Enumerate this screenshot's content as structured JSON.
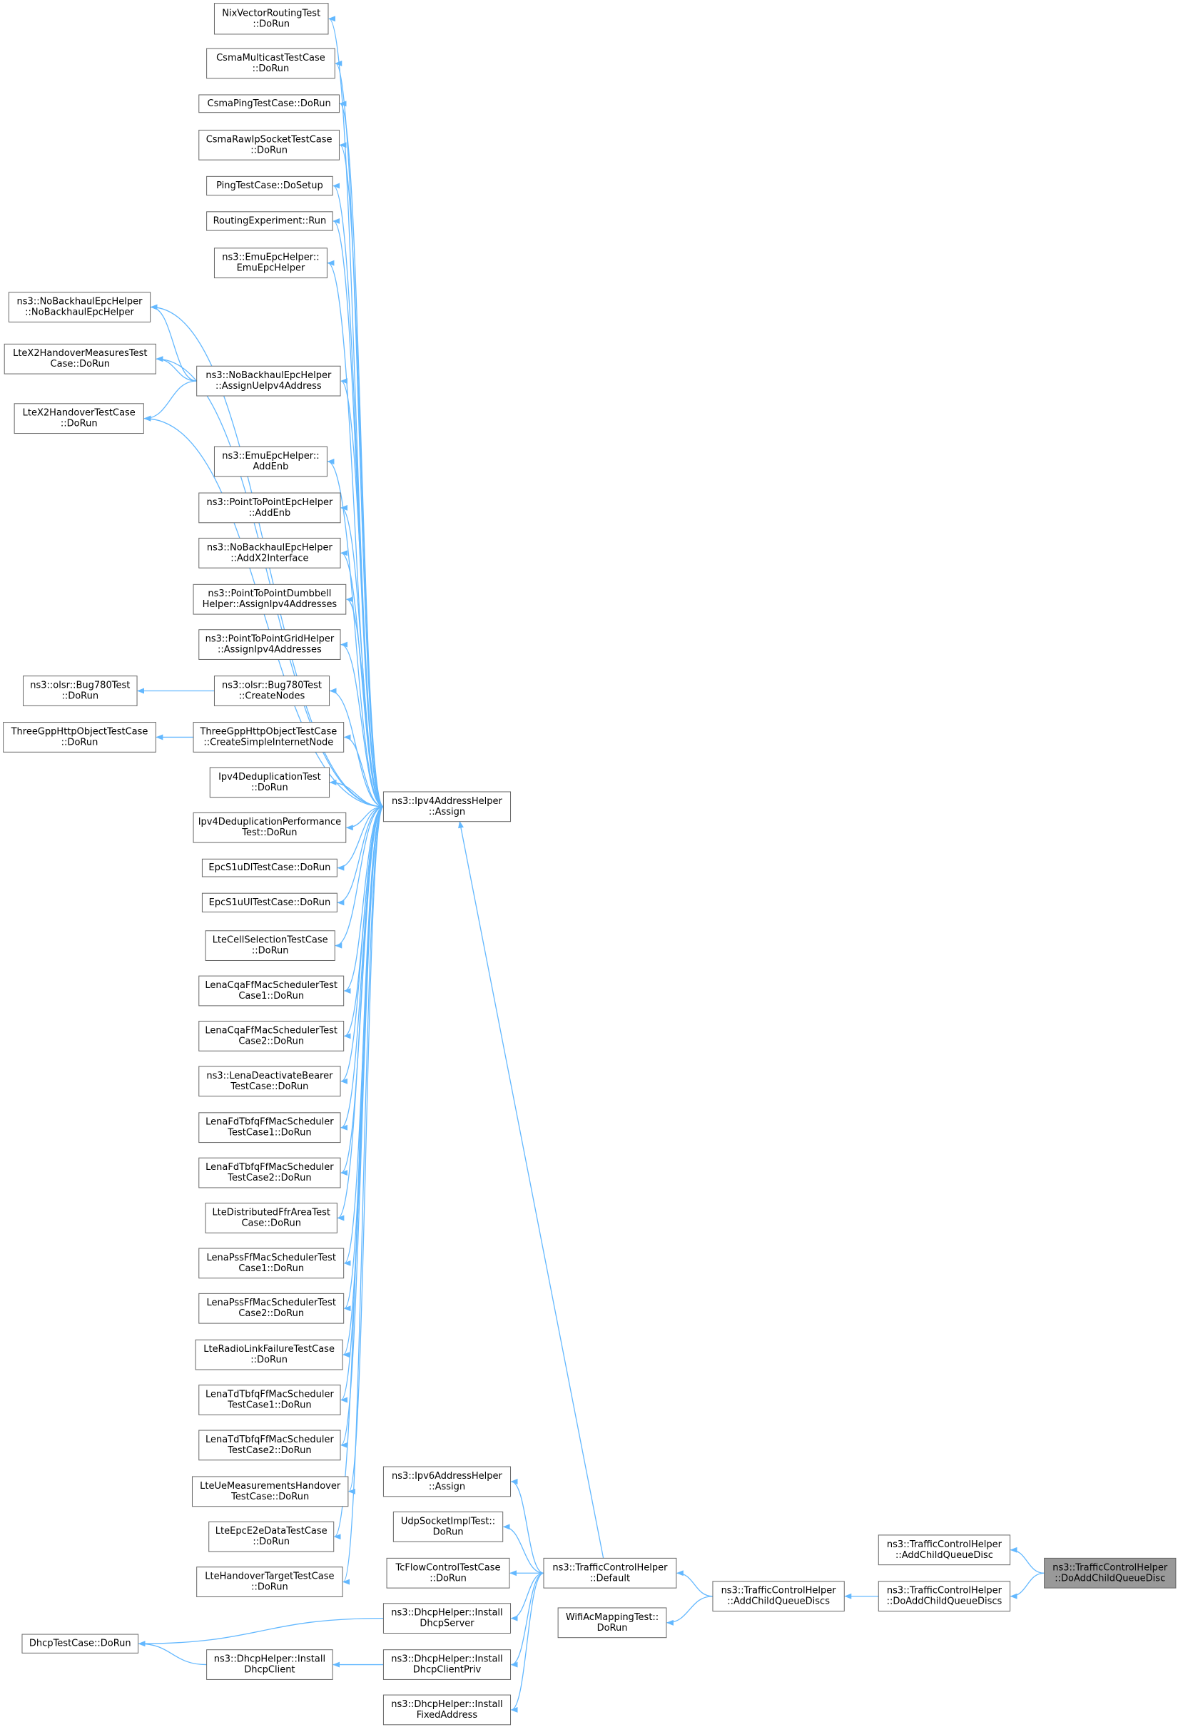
{
  "nodes": [
    {
      "lines": [
        "NixVectorRoutingTest",
        "::DoRun"
      ]
    },
    {
      "lines": [
        "CsmaMulticastTestCase",
        "::DoRun"
      ]
    },
    {
      "lines": [
        "CsmaPingTestCase::DoRun"
      ]
    },
    {
      "lines": [
        "CsmaRawIpSocketTestCase",
        "::DoRun"
      ]
    },
    {
      "lines": [
        "PingTestCase::DoSetup"
      ]
    },
    {
      "lines": [
        "RoutingExperiment::Run"
      ]
    },
    {
      "lines": [
        "ns3::EmuEpcHelper::",
        "EmuEpcHelper"
      ]
    },
    {
      "lines": [
        "ns3::NoBackhaulEpcHelper",
        "::NoBackhaulEpcHelper"
      ]
    },
    {
      "lines": [
        "LteX2HandoverMeasuresTest",
        "Case::DoRun"
      ]
    },
    {
      "lines": [
        "ns3::NoBackhaulEpcHelper",
        "::AssignUeIpv4Address"
      ]
    },
    {
      "lines": [
        "LteX2HandoverTestCase",
        "::DoRun"
      ]
    },
    {
      "lines": [
        "ns3::EmuEpcHelper::",
        "AddEnb"
      ]
    },
    {
      "lines": [
        "ns3::PointToPointEpcHelper",
        "::AddEnb"
      ]
    },
    {
      "lines": [
        "ns3::NoBackhaulEpcHelper",
        "::AddX2Interface"
      ]
    },
    {
      "lines": [
        "ns3::PointToPointDumbbell",
        "Helper::AssignIpv4Addresses"
      ]
    },
    {
      "lines": [
        "ns3::PointToPointGridHelper",
        "::AssignIpv4Addresses"
      ]
    },
    {
      "lines": [
        "ns3::olsr::Bug780Test",
        "::DoRun"
      ]
    },
    {
      "lines": [
        "ns3::olsr::Bug780Test",
        "::CreateNodes"
      ]
    },
    {
      "lines": [
        "ThreeGppHttpObjectTestCase",
        "::DoRun"
      ]
    },
    {
      "lines": [
        "ThreeGppHttpObjectTestCase",
        "::CreateSimpleInternetNode"
      ]
    },
    {
      "lines": [
        "Ipv4DeduplicationTest",
        "::DoRun"
      ]
    },
    {
      "lines": [
        "ns3::Ipv4AddressHelper",
        "::Assign"
      ]
    },
    {
      "lines": [
        "Ipv4DeduplicationPerformance",
        "Test::DoRun"
      ]
    },
    {
      "lines": [
        "EpcS1uDlTestCase::DoRun"
      ]
    },
    {
      "lines": [
        "EpcS1uUlTestCase::DoRun"
      ]
    },
    {
      "lines": [
        "LteCellSelectionTestCase",
        "::DoRun"
      ]
    },
    {
      "lines": [
        "LenaCqaFfMacSchedulerTest",
        "Case1::DoRun"
      ]
    },
    {
      "lines": [
        "LenaCqaFfMacSchedulerTest",
        "Case2::DoRun"
      ]
    },
    {
      "lines": [
        "ns3::LenaDeactivateBearer",
        "TestCase::DoRun"
      ]
    },
    {
      "lines": [
        "LenaFdTbfqFfMacScheduler",
        "TestCase1::DoRun"
      ]
    },
    {
      "lines": [
        "LenaFdTbfqFfMacScheduler",
        "TestCase2::DoRun"
      ]
    },
    {
      "lines": [
        "LteDistributedFfrAreaTest",
        "Case::DoRun"
      ]
    },
    {
      "lines": [
        "LenaPssFfMacSchedulerTest",
        "Case1::DoRun"
      ]
    },
    {
      "lines": [
        "LenaPssFfMacSchedulerTest",
        "Case2::DoRun"
      ]
    },
    {
      "lines": [
        "LteRadioLinkFailureTestCase",
        "::DoRun"
      ]
    },
    {
      "lines": [
        "LenaTdTbfqFfMacScheduler",
        "TestCase1::DoRun"
      ]
    },
    {
      "lines": [
        "LenaTdTbfqFfMacScheduler",
        "TestCase2::DoRun"
      ]
    },
    {
      "lines": [
        "LteUeMeasurementsHandover",
        "TestCase::DoRun"
      ]
    },
    {
      "lines": [
        "LteEpcE2eDataTestCase",
        "::DoRun"
      ]
    },
    {
      "lines": [
        "LteHandoverTargetTestCase",
        "::DoRun"
      ]
    },
    {
      "lines": [
        "ns3::Ipv6AddressHelper",
        "::Assign"
      ]
    },
    {
      "lines": [
        "UdpSocketImplTest::",
        "DoRun"
      ]
    },
    {
      "lines": [
        "TcFlowControlTestCase",
        "::DoRun"
      ]
    },
    {
      "lines": [
        "ns3::TrafficControlHelper",
        "::Default"
      ]
    },
    {
      "lines": [
        "ns3::DhcpHelper::Install",
        "DhcpServer"
      ]
    },
    {
      "lines": [
        "DhcpTestCase::DoRun"
      ]
    },
    {
      "lines": [
        "ns3::DhcpHelper::Install",
        "DhcpClient"
      ]
    },
    {
      "lines": [
        "ns3::DhcpHelper::Install",
        "DhcpClientPriv"
      ]
    },
    {
      "lines": [
        "ns3::DhcpHelper::Install",
        "FixedAddress"
      ]
    },
    {
      "lines": [
        "WifiAcMappingTest::",
        "DoRun"
      ]
    },
    {
      "lines": [
        "ns3::TrafficControlHelper",
        "::AddChildQueueDiscs"
      ]
    },
    {
      "lines": [
        "ns3::TrafficControlHelper",
        "::AddChildQueueDisc"
      ]
    },
    {
      "lines": [
        "ns3::TrafficControlHelper",
        "::DoAddChildQueueDiscs"
      ]
    },
    {
      "lines": [
        "ns3::TrafficControlHelper",
        "::DoAddChildQueueDisc"
      ]
    }
  ]
}
